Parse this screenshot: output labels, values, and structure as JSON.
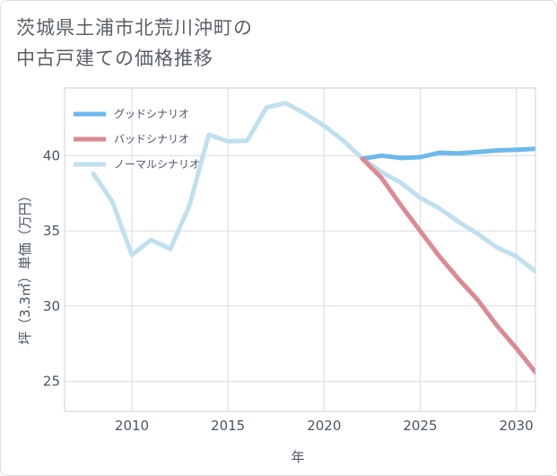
{
  "title_lines": [
    "茨城県土浦市北荒川沖町の",
    "中古戸建ての価格推移"
  ],
  "chart_data": {
    "type": "line",
    "title": "茨城県土浦市北荒川沖町の中古戸建ての価格推移",
    "xlabel": "年",
    "ylabel": "坪（3.3㎡）単価（万円）",
    "xlim": [
      2006.5,
      2031
    ],
    "ylim": [
      23,
      44.5
    ],
    "xticks": [
      2010,
      2015,
      2020,
      2025,
      2030
    ],
    "yticks": [
      25,
      30,
      35,
      40
    ],
    "grid": true,
    "legend_position": "top-left",
    "series": [
      {
        "name": "グッドシナリオ",
        "color": "#6cb9ee",
        "x": [
          2022,
          2023,
          2024,
          2025,
          2026,
          2027,
          2028,
          2029,
          2030,
          2031
        ],
        "values": [
          39.8,
          40.0,
          39.85,
          39.9,
          40.2,
          40.15,
          40.25,
          40.35,
          40.4,
          40.45
        ]
      },
      {
        "name": "バッドシナリオ",
        "color": "#dc8a93",
        "x": [
          2022,
          2023,
          2024,
          2025,
          2026,
          2027,
          2028,
          2029,
          2030,
          2031
        ],
        "values": [
          39.8,
          38.5,
          36.7,
          35.0,
          33.3,
          31.8,
          30.4,
          28.7,
          27.2,
          25.6
        ]
      },
      {
        "name": "ノーマルシナリオ",
        "color": "#bfe0ee",
        "x": [
          2008,
          2009,
          2010,
          2011,
          2012,
          2013,
          2014,
          2015,
          2016,
          2017,
          2018,
          2019,
          2020,
          2021,
          2022,
          2023,
          2024,
          2025,
          2026,
          2027,
          2028,
          2029,
          2030,
          2031
        ],
        "values": [
          38.8,
          36.9,
          33.4,
          34.4,
          33.8,
          36.7,
          41.4,
          40.95,
          41.0,
          43.2,
          43.5,
          42.8,
          42.0,
          41.0,
          39.8,
          38.9,
          38.2,
          37.2,
          36.5,
          35.6,
          34.8,
          33.9,
          33.3,
          32.3
        ]
      }
    ]
  }
}
